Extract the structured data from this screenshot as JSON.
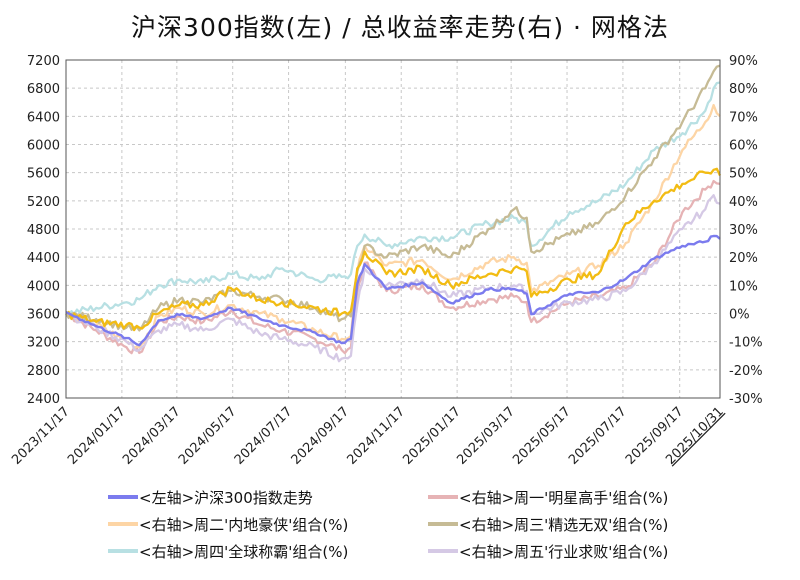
{
  "chart_data": {
    "type": "line",
    "title": "沪深300指数(左)  /  总收益率走势(右) · 网格法",
    "x_ticks": [
      "2023/11/17",
      "2024/01/17",
      "2024/03/17",
      "2024/05/17",
      "2024/07/17",
      "2024/09/17",
      "2024/11/17",
      "2025/01/17",
      "2025/03/17",
      "2025/05/17",
      "2025/07/17",
      "2025/09/17",
      "2025/10/31"
    ],
    "x_range": [
      "2023/11/17",
      "2025/10/31"
    ],
    "y_left": {
      "min": 2400,
      "max": 7200,
      "ticks": [
        "2400",
        "2800",
        "3200",
        "3600",
        "4000",
        "4400",
        "4800",
        "5200",
        "5600",
        "6000",
        "6400",
        "6800",
        "7200"
      ]
    },
    "y_right": {
      "min": -30,
      "max": 90,
      "ticks": [
        "-30%",
        "-20%",
        "-10%",
        "0%",
        "10%",
        "20%",
        "30%",
        "40%",
        "50%",
        "60%",
        "70%",
        "80%",
        "90%"
      ]
    },
    "grid": true,
    "legend_position": "bottom",
    "colors": {
      "last_tick": "#e8191c",
      "negative_tick": "#12c312",
      "positive_tick": "#222222"
    },
    "series": [
      {
        "name": "<左轴>沪深300指数走势",
        "axis": "left",
        "color": "#7b7bee",
        "points": [
          [
            "2023/11/17",
            3620
          ],
          [
            "2023/12/20",
            3420
          ],
          [
            "2024/01/22",
            3250
          ],
          [
            "2024/02/05",
            3150
          ],
          [
            "2024/02/26",
            3500
          ],
          [
            "2024/03/20",
            3580
          ],
          [
            "2024/04/15",
            3530
          ],
          [
            "2024/05/15",
            3680
          ],
          [
            "2024/06/15",
            3530
          ],
          [
            "2024/07/10",
            3430
          ],
          [
            "2024/08/15",
            3330
          ],
          [
            "2024/09/13",
            3180
          ],
          [
            "2024/09/23",
            3240
          ],
          [
            "2024/09/30",
            4020
          ],
          [
            "2024/10/08",
            4300
          ],
          [
            "2024/11/01",
            3950
          ],
          [
            "2024/12/10",
            4040
          ],
          [
            "2025/01/10",
            3750
          ],
          [
            "2025/02/20",
            3940
          ],
          [
            "2025/03/20",
            3950
          ],
          [
            "2025/04/03",
            3880
          ],
          [
            "2025/04/08",
            3590
          ],
          [
            "2025/05/20",
            3880
          ],
          [
            "2025/06/20",
            3900
          ],
          [
            "2025/07/20",
            4090
          ],
          [
            "2025/08/20",
            4380
          ],
          [
            "2025/09/20",
            4560
          ],
          [
            "2025/10/15",
            4620
          ],
          [
            "2025/10/24",
            4700
          ],
          [
            "2025/10/31",
            4660
          ]
        ]
      },
      {
        "name": "<右轴>周一'明星高手'组合(%)",
        "axis": "right",
        "color": "#e6b3b5",
        "points": [
          [
            "2023/11/17",
            0
          ],
          [
            "2023/12/20",
            -6
          ],
          [
            "2024/01/22",
            -12
          ],
          [
            "2024/02/05",
            -14
          ],
          [
            "2024/02/26",
            -3
          ],
          [
            "2024/03/20",
            -1
          ],
          [
            "2024/04/15",
            -3
          ],
          [
            "2024/05/15",
            1
          ],
          [
            "2024/06/15",
            -4
          ],
          [
            "2024/07/10",
            -6
          ],
          [
            "2024/08/15",
            -9
          ],
          [
            "2024/09/13",
            -13
          ],
          [
            "2024/09/23",
            -12
          ],
          [
            "2024/09/30",
            8
          ],
          [
            "2024/10/08",
            18
          ],
          [
            "2024/11/01",
            8
          ],
          [
            "2024/12/10",
            10
          ],
          [
            "2025/01/10",
            2
          ],
          [
            "2025/02/20",
            5
          ],
          [
            "2025/03/20",
            6
          ],
          [
            "2025/04/03",
            4
          ],
          [
            "2025/04/08",
            -3
          ],
          [
            "2025/05/20",
            4
          ],
          [
            "2025/06/20",
            6
          ],
          [
            "2025/07/20",
            9
          ],
          [
            "2025/08/20",
            18
          ],
          [
            "2025/09/20",
            36
          ],
          [
            "2025/10/15",
            44
          ],
          [
            "2025/10/24",
            47
          ],
          [
            "2025/10/31",
            46
          ]
        ]
      },
      {
        "name": "<右轴>周二'内地豪侠'组合(%)",
        "axis": "right",
        "color": "#fdd5a5",
        "points": [
          [
            "2023/11/17",
            0
          ],
          [
            "2023/12/20",
            -4
          ],
          [
            "2024/01/22",
            -10
          ],
          [
            "2024/02/05",
            -12
          ],
          [
            "2024/02/26",
            -1
          ],
          [
            "2024/03/20",
            2
          ],
          [
            "2024/04/15",
            0
          ],
          [
            "2024/05/15",
            3
          ],
          [
            "2024/06/15",
            0
          ],
          [
            "2024/07/10",
            -2
          ],
          [
            "2024/08/15",
            -6
          ],
          [
            "2024/09/13",
            -9
          ],
          [
            "2024/09/23",
            -8
          ],
          [
            "2024/09/30",
            15
          ],
          [
            "2024/10/08",
            24
          ],
          [
            "2024/11/01",
            17
          ],
          [
            "2024/12/10",
            19
          ],
          [
            "2025/01/10",
            12
          ],
          [
            "2025/02/20",
            18
          ],
          [
            "2025/03/20",
            20
          ],
          [
            "2025/04/03",
            18
          ],
          [
            "2025/04/08",
            8
          ],
          [
            "2025/05/20",
            14
          ],
          [
            "2025/06/20",
            17
          ],
          [
            "2025/07/20",
            25
          ],
          [
            "2025/08/20",
            40
          ],
          [
            "2025/09/20",
            58
          ],
          [
            "2025/10/15",
            68
          ],
          [
            "2025/10/24",
            74
          ],
          [
            "2025/10/31",
            70
          ]
        ]
      },
      {
        "name": "<右轴>周三'精选无双'组合(%)",
        "axis": "right",
        "color": "#c6bb95",
        "points": [
          [
            "2023/11/17",
            0
          ],
          [
            "2023/12/20",
            -2
          ],
          [
            "2024/01/22",
            -5
          ],
          [
            "2024/02/05",
            -6
          ],
          [
            "2024/02/26",
            2
          ],
          [
            "2024/03/20",
            5
          ],
          [
            "2024/04/15",
            4
          ],
          [
            "2024/05/15",
            8
          ],
          [
            "2024/06/15",
            6
          ],
          [
            "2024/07/10",
            5
          ],
          [
            "2024/08/15",
            2
          ],
          [
            "2024/09/13",
            -2
          ],
          [
            "2024/09/23",
            -1
          ],
          [
            "2024/09/30",
            15
          ],
          [
            "2024/10/08",
            24
          ],
          [
            "2024/11/01",
            20
          ],
          [
            "2024/12/10",
            24
          ],
          [
            "2025/01/10",
            20
          ],
          [
            "2025/02/20",
            30
          ],
          [
            "2025/03/20",
            37
          ],
          [
            "2025/04/03",
            34
          ],
          [
            "2025/04/08",
            22
          ],
          [
            "2025/05/20",
            28
          ],
          [
            "2025/06/20",
            32
          ],
          [
            "2025/07/20",
            42
          ],
          [
            "2025/08/20",
            55
          ],
          [
            "2025/09/20",
            68
          ],
          [
            "2025/10/15",
            80
          ],
          [
            "2025/10/24",
            86
          ],
          [
            "2025/10/31",
            88
          ]
        ]
      },
      {
        "name": "<右轴>周四'全球称霸'组合(%)",
        "axis": "right",
        "color": "#b8e0e3",
        "points": [
          [
            "2023/11/17",
            0
          ],
          [
            "2023/12/20",
            2
          ],
          [
            "2024/01/22",
            4
          ],
          [
            "2024/02/05",
            5
          ],
          [
            "2024/02/26",
            10
          ],
          [
            "2024/03/20",
            12
          ],
          [
            "2024/04/15",
            11
          ],
          [
            "2024/05/15",
            14
          ],
          [
            "2024/06/15",
            12
          ],
          [
            "2024/07/10",
            16
          ],
          [
            "2024/08/15",
            12
          ],
          [
            "2024/09/13",
            13
          ],
          [
            "2024/09/23",
            14
          ],
          [
            "2024/09/30",
            24
          ],
          [
            "2024/10/08",
            28
          ],
          [
            "2024/11/01",
            24
          ],
          [
            "2024/12/10",
            27
          ],
          [
            "2025/01/10",
            27
          ],
          [
            "2025/02/20",
            32
          ],
          [
            "2025/03/20",
            34
          ],
          [
            "2025/04/03",
            32
          ],
          [
            "2025/04/08",
            24
          ],
          [
            "2025/05/20",
            36
          ],
          [
            "2025/06/20",
            40
          ],
          [
            "2025/07/20",
            46
          ],
          [
            "2025/08/20",
            58
          ],
          [
            "2025/09/20",
            64
          ],
          [
            "2025/10/15",
            72
          ],
          [
            "2025/10/24",
            80
          ],
          [
            "2025/10/31",
            82
          ]
        ]
      },
      {
        "name": "<右轴>周五'行业求败'组合(%)",
        "axis": "right",
        "color": "#d5c9e5",
        "points": [
          [
            "2023/11/17",
            0
          ],
          [
            "2023/12/20",
            -5
          ],
          [
            "2024/01/22",
            -10
          ],
          [
            "2024/02/05",
            -13
          ],
          [
            "2024/02/26",
            -6
          ],
          [
            "2024/03/20",
            -4
          ],
          [
            "2024/04/15",
            -6
          ],
          [
            "2024/05/15",
            -2
          ],
          [
            "2024/06/15",
            -7
          ],
          [
            "2024/07/10",
            -9
          ],
          [
            "2024/08/15",
            -12
          ],
          [
            "2024/09/13",
            -16
          ],
          [
            "2024/09/23",
            -15
          ],
          [
            "2024/09/30",
            3
          ],
          [
            "2024/10/08",
            16
          ],
          [
            "2024/11/01",
            10
          ],
          [
            "2024/12/10",
            12
          ],
          [
            "2025/01/10",
            6
          ],
          [
            "2025/02/20",
            9
          ],
          [
            "2025/03/20",
            10
          ],
          [
            "2025/04/03",
            8
          ],
          [
            "2025/04/08",
            0
          ],
          [
            "2025/05/20",
            4
          ],
          [
            "2025/06/20",
            5
          ],
          [
            "2025/07/20",
            8
          ],
          [
            "2025/08/20",
            18
          ],
          [
            "2025/09/20",
            30
          ],
          [
            "2025/10/15",
            37
          ],
          [
            "2025/10/24",
            42
          ],
          [
            "2025/10/31",
            39
          ]
        ]
      },
      {
        "name": "",
        "axis": "right",
        "color": "#f2bc13",
        "points": [
          [
            "2023/11/17",
            0
          ],
          [
            "2023/12/20",
            -3
          ],
          [
            "2024/01/22",
            -4
          ],
          [
            "2024/02/05",
            -5
          ],
          [
            "2024/02/26",
            0
          ],
          [
            "2024/03/20",
            3
          ],
          [
            "2024/04/15",
            3
          ],
          [
            "2024/05/15",
            9
          ],
          [
            "2024/06/15",
            5
          ],
          [
            "2024/07/10",
            4
          ],
          [
            "2024/08/15",
            2
          ],
          [
            "2024/09/13",
            0
          ],
          [
            "2024/09/23",
            1
          ],
          [
            "2024/09/30",
            16
          ],
          [
            "2024/10/08",
            22
          ],
          [
            "2024/11/01",
            14
          ],
          [
            "2024/12/10",
            16
          ],
          [
            "2025/01/10",
            10
          ],
          [
            "2025/02/20",
            14
          ],
          [
            "2025/03/20",
            16
          ],
          [
            "2025/04/03",
            15
          ],
          [
            "2025/04/08",
            6
          ],
          [
            "2025/05/20",
            12
          ],
          [
            "2025/06/20",
            14
          ],
          [
            "2025/07/20",
            32
          ],
          [
            "2025/08/20",
            40
          ],
          [
            "2025/09/20",
            46
          ],
          [
            "2025/10/15",
            50
          ],
          [
            "2025/10/24",
            51
          ],
          [
            "2025/10/31",
            49
          ]
        ]
      }
    ]
  }
}
